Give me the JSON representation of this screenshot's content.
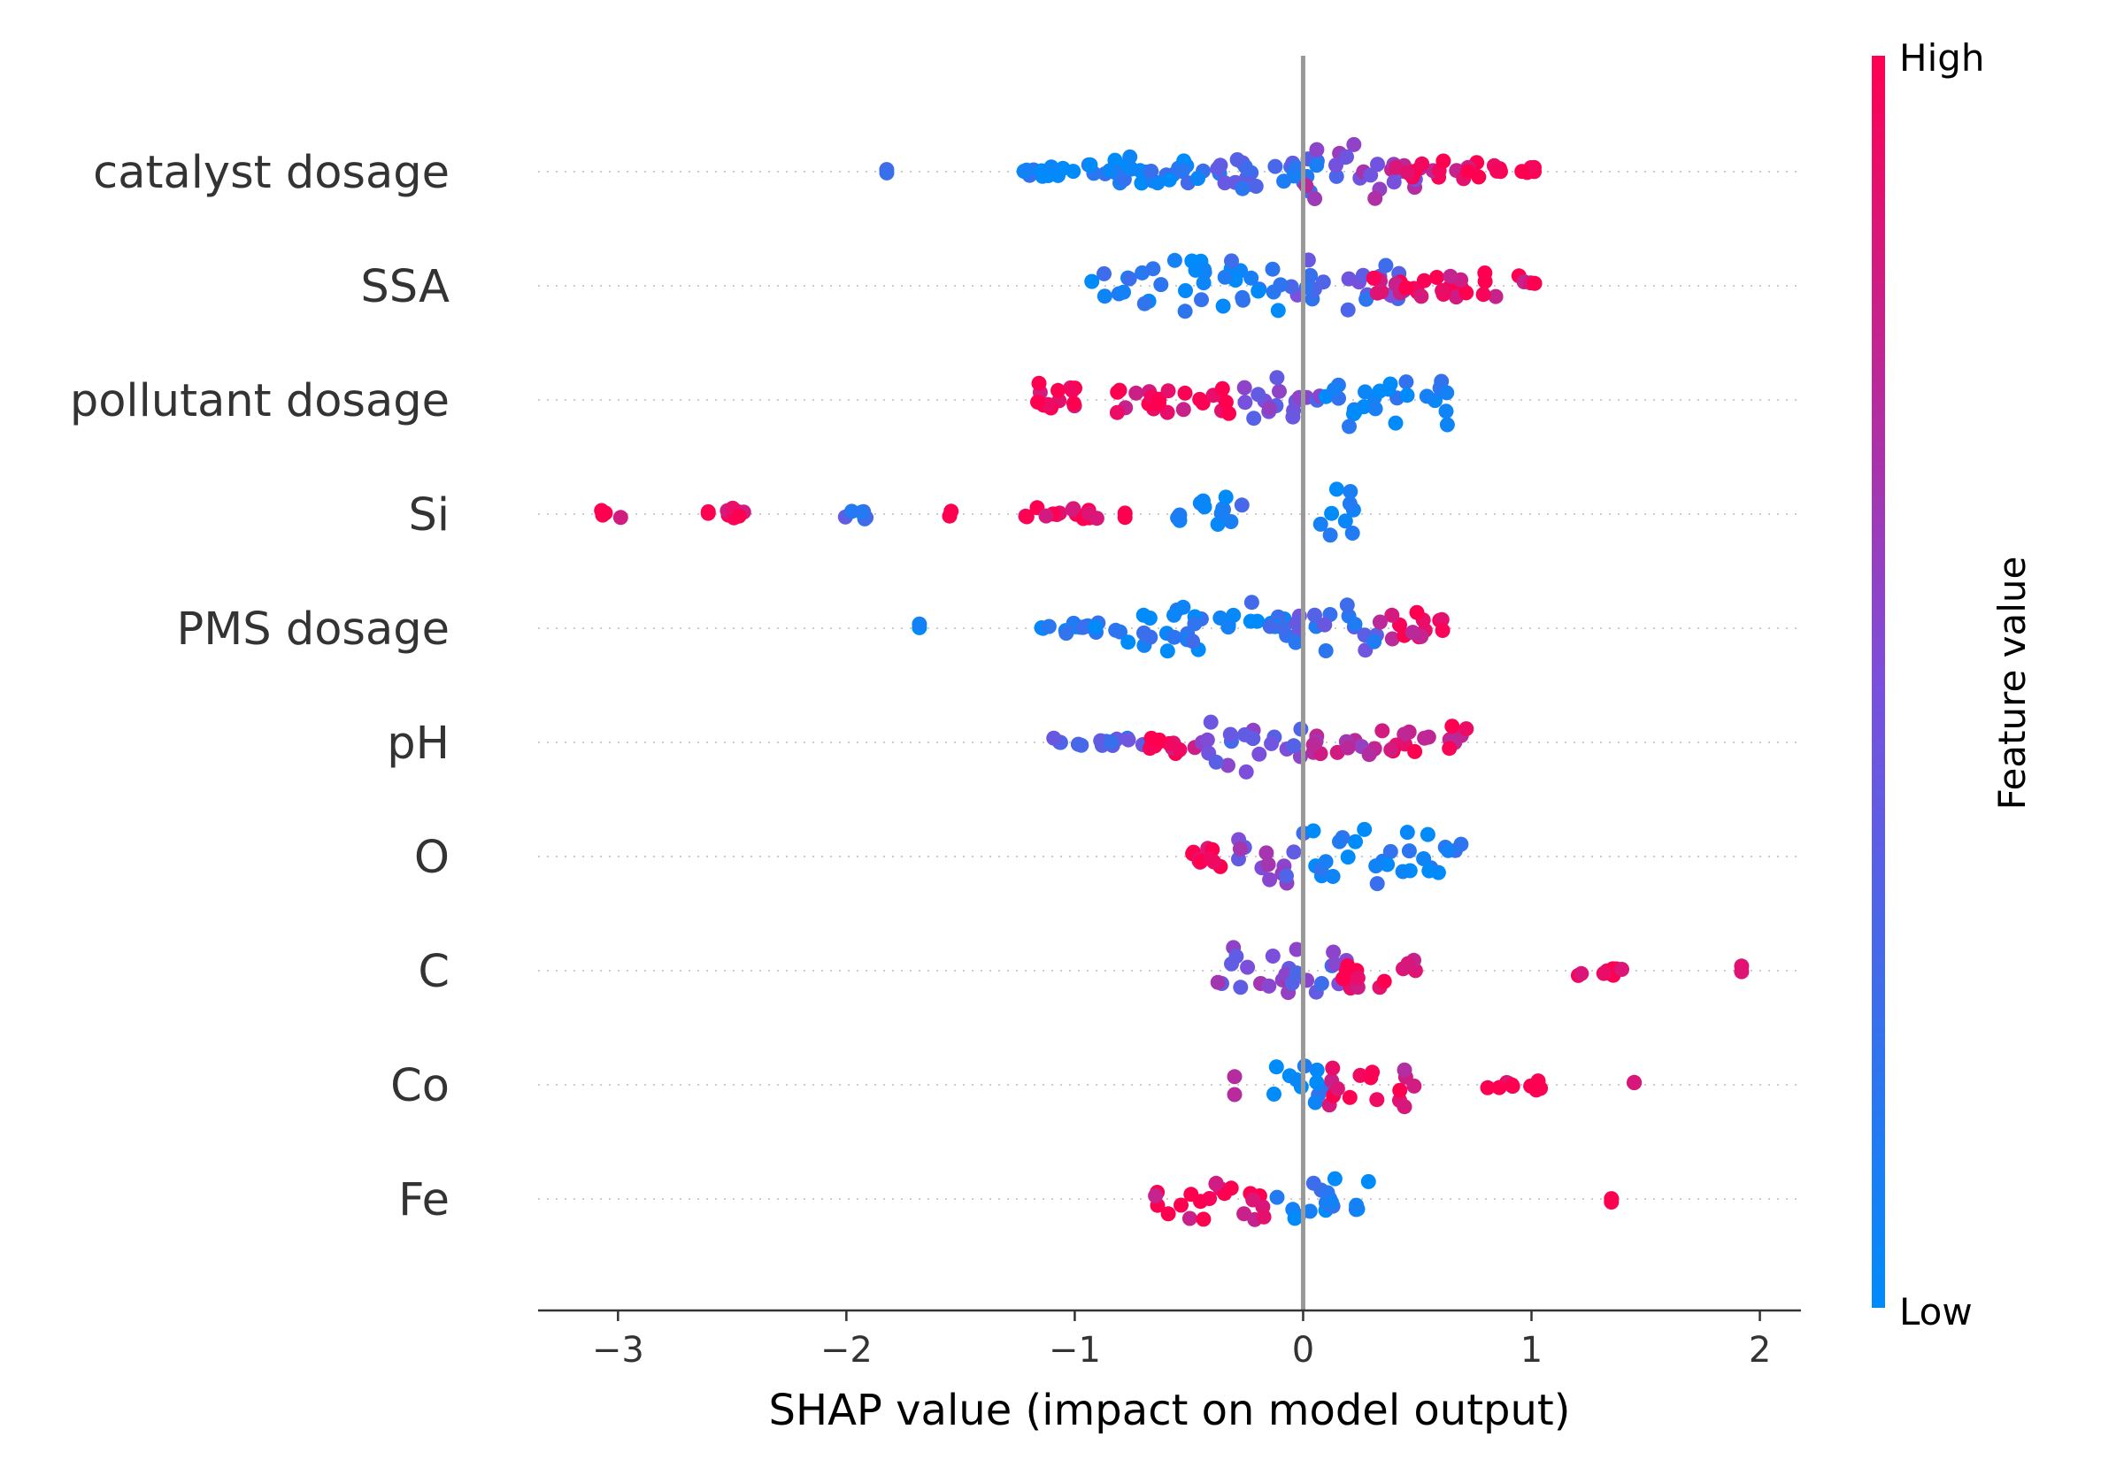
{
  "chart_data": {
    "type": "scatter",
    "subtype": "shap-beeswarm",
    "title": "",
    "xlabel": "SHAP value (impact on model output)",
    "ylabel": "",
    "xlim": [
      -3.35,
      2.18
    ],
    "xticks": [
      -3,
      -2,
      -1,
      0,
      1,
      2
    ],
    "xtick_labels": [
      "−3",
      "−2",
      "−1",
      "0",
      "1",
      "2"
    ],
    "grid": false,
    "colorbar": {
      "title": "Feature value",
      "high_label": "High",
      "low_label": "Low",
      "low_color": "#008bfb",
      "high_color": "#ff0051"
    },
    "features": [
      {
        "name": "catalyst dosage",
        "range": [
          -1.85,
          1.02
        ],
        "clusters": [
          {
            "x": [
              -1.83,
              -1.82
            ],
            "color": 0.1
          },
          {
            "x": [
              -1.25,
              -1.0
            ],
            "color": 0.08
          },
          {
            "x": [
              -1.0,
              -0.3
            ],
            "color": 0.1
          },
          {
            "x": [
              -0.4,
              0.2
            ],
            "color": 0.25
          },
          {
            "x": [
              0.0,
              0.5
            ],
            "color": 0.6
          },
          {
            "x": [
              0.4,
              0.8
            ],
            "color": 0.9
          },
          {
            "x": [
              0.8,
              1.02
            ],
            "color": 1.0
          }
        ]
      },
      {
        "name": "SSA",
        "range": [
          -0.93,
          1.03
        ],
        "clusters": [
          {
            "x": [
              -0.93,
              -0.1
            ],
            "color": 0.08
          },
          {
            "x": [
              -0.1,
              0.45
            ],
            "color": 0.35
          },
          {
            "x": [
              0.3,
              1.03
            ],
            "color": 0.95
          }
        ]
      },
      {
        "name": "pollutant dosage",
        "range": [
          -1.17,
          0.65
        ],
        "clusters": [
          {
            "x": [
              -1.17,
              -0.3
            ],
            "color": 0.95
          },
          {
            "x": [
              -0.3,
              0.1
            ],
            "color": 0.45
          },
          {
            "x": [
              0.05,
              0.65
            ],
            "color": 0.08
          }
        ]
      },
      {
        "name": "Si",
        "range": [
          -3.08,
          0.25
        ],
        "clusters": [
          {
            "x": [
              -3.08,
              -2.98
            ],
            "color": 1.0
          },
          {
            "x": [
              -2.65,
              -2.4
            ],
            "color": 1.0
          },
          {
            "x": [
              -2.05,
              -1.9
            ],
            "color": 0.3
          },
          {
            "x": [
              -1.55,
              -1.5
            ],
            "color": 1.0
          },
          {
            "x": [
              -1.23,
              -0.88
            ],
            "color": 1.0
          },
          {
            "x": [
              -0.78,
              -0.78
            ],
            "color": 1.0
          },
          {
            "x": [
              -0.58,
              -0.25
            ],
            "color": 0.15
          },
          {
            "x": [
              0.05,
              0.25
            ],
            "color": 0.05
          }
        ]
      },
      {
        "name": "PMS dosage",
        "range": [
          -1.68,
          0.62
        ],
        "clusters": [
          {
            "x": [
              -1.68,
              -1.68
            ],
            "color": 0.05
          },
          {
            "x": [
              -1.18,
              -0.8
            ],
            "color": 0.1
          },
          {
            "x": [
              -0.8,
              -0.05
            ],
            "color": 0.1
          },
          {
            "x": [
              -0.1,
              0.35
            ],
            "color": 0.3
          },
          {
            "x": [
              0.3,
              0.62
            ],
            "color": 0.9
          }
        ]
      },
      {
        "name": "pH",
        "range": [
          -1.1,
          0.73
        ],
        "clusters": [
          {
            "x": [
              -1.1,
              -0.65
            ],
            "color": 0.3
          },
          {
            "x": [
              -0.7,
              -0.45
            ],
            "color": 0.95
          },
          {
            "x": [
              -0.45,
              0.0
            ],
            "color": 0.45
          },
          {
            "x": [
              0.0,
              0.35
            ],
            "color": 0.7
          },
          {
            "x": [
              0.35,
              0.73
            ],
            "color": 0.9
          }
        ]
      },
      {
        "name": "O",
        "range": [
          -0.55,
          0.7
        ],
        "clusters": [
          {
            "x": [
              -0.55,
              -0.3
            ],
            "color": 0.9
          },
          {
            "x": [
              -0.3,
              0.0
            ],
            "color": 0.5
          },
          {
            "x": [
              0.0,
              0.7
            ],
            "color": 0.08
          }
        ]
      },
      {
        "name": "C",
        "range": [
          -0.4,
          1.92
        ],
        "clusters": [
          {
            "x": [
              -0.4,
              -0.05
            ],
            "color": 0.55
          },
          {
            "x": [
              -0.05,
              0.2
            ],
            "color": 0.4
          },
          {
            "x": [
              0.15,
              0.5
            ],
            "color": 0.95
          },
          {
            "x": [
              1.2,
              1.4
            ],
            "color": 1.0
          },
          {
            "x": [
              1.92,
              1.92
            ],
            "color": 1.0
          }
        ]
      },
      {
        "name": "Co",
        "range": [
          -0.3,
          1.45
        ],
        "clusters": [
          {
            "x": [
              -0.3,
              -0.3
            ],
            "color": 0.7
          },
          {
            "x": [
              -0.15,
              0.1
            ],
            "color": 0.08
          },
          {
            "x": [
              0.1,
              0.5
            ],
            "color": 0.85
          },
          {
            "x": [
              0.8,
              1.05
            ],
            "color": 1.0
          },
          {
            "x": [
              1.45,
              1.45
            ],
            "color": 1.0
          }
        ]
      },
      {
        "name": "Fe",
        "range": [
          -0.65,
          1.35
        ],
        "clusters": [
          {
            "x": [
              -0.65,
              -0.15
            ],
            "color": 0.95
          },
          {
            "x": [
              -0.15,
              0.3
            ],
            "color": 0.08
          },
          {
            "x": [
              1.35,
              1.35
            ],
            "color": 1.0
          }
        ]
      }
    ]
  }
}
